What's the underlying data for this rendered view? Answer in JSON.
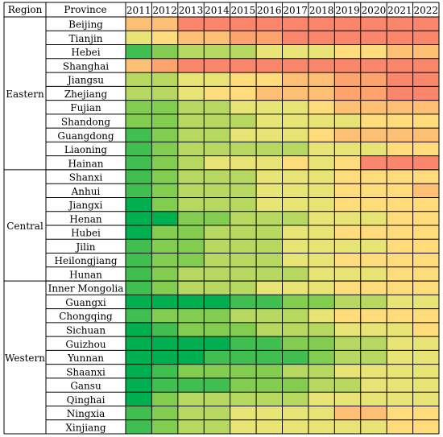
{
  "chart_data": {
    "type": "heatmap",
    "header": {
      "region": "Region",
      "province": "Province"
    },
    "years": [
      "2011",
      "2012",
      "2013",
      "2014",
      "2015",
      "2016",
      "2017",
      "2018",
      "2019",
      "2020",
      "2021",
      "2022"
    ],
    "regions": [
      {
        "name": "Eastern",
        "start": 0,
        "count": 11
      },
      {
        "name": "Central",
        "start": 11,
        "count": 8
      },
      {
        "name": "Western",
        "start": 19,
        "count": 11
      }
    ],
    "provinces": [
      "Beijing",
      "Tianjin",
      "Hebei",
      "Shanghai",
      "Jiangsu",
      "Zhejiang",
      "Fujian",
      "Shandong",
      "Guangdong",
      "Liaoning",
      "Hainan",
      "Shanxi",
      "Anhui",
      "Jiangxi",
      "Henan",
      "Hubei",
      "Jilin",
      "Heilongjiang",
      "Hunan",
      "Inner Mongolia",
      "Guangxi",
      "Chongqing",
      "Sichuan",
      "Guizhou",
      "Yunnan",
      "Shaanxi",
      "Gansu",
      "Qinghai",
      "Ningxia",
      "Xinjiang"
    ],
    "color_scale": {
      "stops": [
        "#00b050",
        "#92d050",
        "#ffe97f",
        "#fcaa6e",
        "#f8696b"
      ],
      "domain": [
        1,
        10
      ]
    },
    "values": [
      [
        7,
        7,
        9,
        9,
        9,
        9,
        9,
        9,
        9,
        9,
        9,
        9
      ],
      [
        5,
        6,
        7,
        7,
        8,
        8,
        9,
        9,
        9,
        9,
        9,
        9
      ],
      [
        2,
        3,
        4,
        4,
        4,
        5,
        5,
        5,
        6,
        6,
        7,
        7
      ],
      [
        7,
        8,
        9,
        9,
        9,
        9,
        9,
        9,
        9,
        9,
        9,
        9
      ],
      [
        4,
        4,
        5,
        5,
        6,
        6,
        7,
        7,
        8,
        8,
        9,
        9
      ],
      [
        4,
        4,
        5,
        6,
        6,
        7,
        7,
        7,
        8,
        8,
        9,
        9
      ],
      [
        3,
        3,
        4,
        4,
        5,
        5,
        5,
        6,
        7,
        7,
        7,
        7
      ],
      [
        3,
        3,
        4,
        4,
        4,
        5,
        5,
        5,
        5,
        6,
        6,
        6
      ],
      [
        2,
        3,
        4,
        4,
        5,
        5,
        5,
        6,
        7,
        7,
        7,
        7
      ],
      [
        2,
        3,
        4,
        4,
        4,
        4,
        4,
        5,
        5,
        5,
        6,
        6
      ],
      [
        2,
        3,
        4,
        5,
        5,
        5,
        6,
        5,
        6,
        9,
        9,
        9
      ],
      [
        2,
        3,
        4,
        4,
        4,
        5,
        5,
        5,
        6,
        6,
        6,
        6
      ],
      [
        2,
        3,
        4,
        4,
        4,
        5,
        5,
        5,
        6,
        6,
        6,
        7
      ],
      [
        1,
        3,
        4,
        4,
        4,
        5,
        5,
        5,
        6,
        6,
        6,
        6
      ],
      [
        1,
        1,
        3,
        3,
        4,
        4,
        4,
        5,
        5,
        5,
        6,
        6
      ],
      [
        1,
        3,
        3,
        4,
        4,
        4,
        5,
        5,
        6,
        6,
        6,
        6
      ],
      [
        2,
        3,
        3,
        4,
        4,
        4,
        5,
        5,
        5,
        5,
        6,
        6
      ],
      [
        2,
        3,
        3,
        4,
        4,
        4,
        5,
        5,
        6,
        6,
        6,
        6
      ],
      [
        2,
        3,
        4,
        4,
        4,
        4,
        4,
        5,
        5,
        5,
        6,
        6
      ],
      [
        2,
        3,
        4,
        4,
        4,
        5,
        5,
        5,
        6,
        6,
        6,
        6
      ],
      [
        1,
        1,
        1,
        1,
        2,
        2,
        3,
        3,
        4,
        4,
        5,
        5
      ],
      [
        2,
        3,
        3,
        3,
        4,
        4,
        4,
        5,
        6,
        6,
        6,
        6
      ],
      [
        1,
        2,
        3,
        3,
        3,
        4,
        4,
        4,
        5,
        5,
        5,
        6
      ],
      [
        1,
        1,
        1,
        1,
        2,
        2,
        3,
        3,
        4,
        4,
        5,
        5
      ],
      [
        1,
        1,
        1,
        2,
        2,
        2,
        2,
        3,
        4,
        4,
        5,
        5
      ],
      [
        1,
        2,
        3,
        3,
        3,
        3,
        4,
        4,
        5,
        5,
        5,
        5
      ],
      [
        1,
        2,
        2,
        2,
        3,
        3,
        3,
        4,
        4,
        5,
        5,
        5
      ],
      [
        1,
        3,
        4,
        4,
        4,
        4,
        4,
        5,
        5,
        5,
        5,
        5
      ],
      [
        2,
        3,
        4,
        4,
        5,
        5,
        5,
        5,
        7,
        7,
        6,
        6
      ],
      [
        2,
        3,
        4,
        4,
        5,
        5,
        5,
        5,
        5,
        5,
        6,
        6
      ]
    ]
  }
}
